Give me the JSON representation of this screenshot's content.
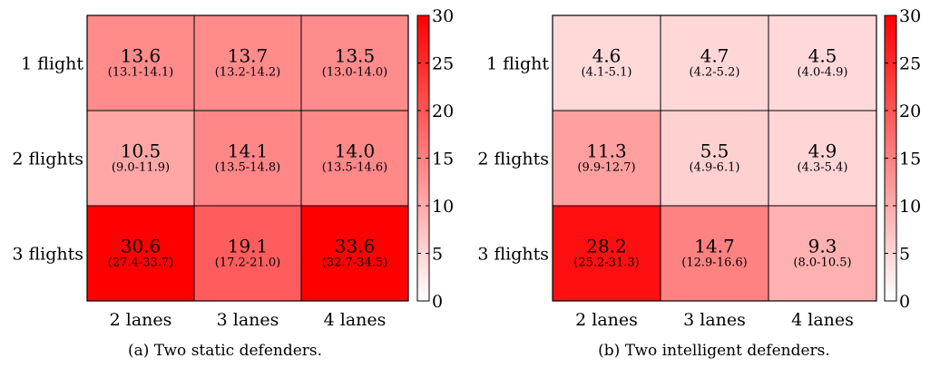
{
  "chart_data": [
    {
      "type": "heatmap",
      "caption": "(a) Two static defenders.",
      "x_categories": [
        "2 lanes",
        "3 lanes",
        "4 lanes"
      ],
      "y_categories": [
        "1 flight",
        "2 flights",
        "3 flights"
      ],
      "values": [
        [
          13.6,
          13.7,
          13.5
        ],
        [
          10.5,
          14.1,
          14.0
        ],
        [
          30.6,
          19.1,
          33.6
        ]
      ],
      "values_text": [
        [
          "13.6",
          "13.7",
          "13.5"
        ],
        [
          "10.5",
          "14.1",
          "14.0"
        ],
        [
          "30.6",
          "19.1",
          "33.6"
        ]
      ],
      "intervals": [
        [
          "(13.1-14.1)",
          "(13.2-14.2)",
          "(13.0-14.0)"
        ],
        [
          "(9.0-11.9)",
          "(13.5-14.8)",
          "(13.5-14.6)"
        ],
        [
          "(27.4-33.7)",
          "(17.2-21.0)",
          "(32.7-34.5)"
        ]
      ],
      "colorbar": {
        "min": 0,
        "max": 30,
        "ticks": [
          "0",
          "5",
          "10",
          "15",
          "20",
          "25",
          "30"
        ],
        "color_low": "#ffffff",
        "color_high": "#ff0000"
      }
    },
    {
      "type": "heatmap",
      "caption": "(b) Two intelligent defenders.",
      "x_categories": [
        "2 lanes",
        "3 lanes",
        "4 lanes"
      ],
      "y_categories": [
        "1 flight",
        "2 flights",
        "3 flights"
      ],
      "values": [
        [
          4.6,
          4.7,
          4.5
        ],
        [
          11.3,
          5.5,
          4.9
        ],
        [
          28.2,
          14.7,
          9.3
        ]
      ],
      "values_text": [
        [
          "4.6",
          "4.7",
          "4.5"
        ],
        [
          "11.3",
          "5.5",
          "4.9"
        ],
        [
          "28.2",
          "14.7",
          "9.3"
        ]
      ],
      "intervals": [
        [
          "(4.1-5.1)",
          "(4.2-5.2)",
          "(4.0-4.9)"
        ],
        [
          "(9.9-12.7)",
          "(4.9-6.1)",
          "(4.3-5.4)"
        ],
        [
          "(25.2-31.3)",
          "(12.9-16.6)",
          "(8.0-10.5)"
        ]
      ],
      "colorbar": {
        "min": 0,
        "max": 30,
        "ticks": [
          "0",
          "5",
          "10",
          "15",
          "20",
          "25",
          "30"
        ],
        "color_low": "#ffffff",
        "color_high": "#ff0000"
      }
    }
  ]
}
